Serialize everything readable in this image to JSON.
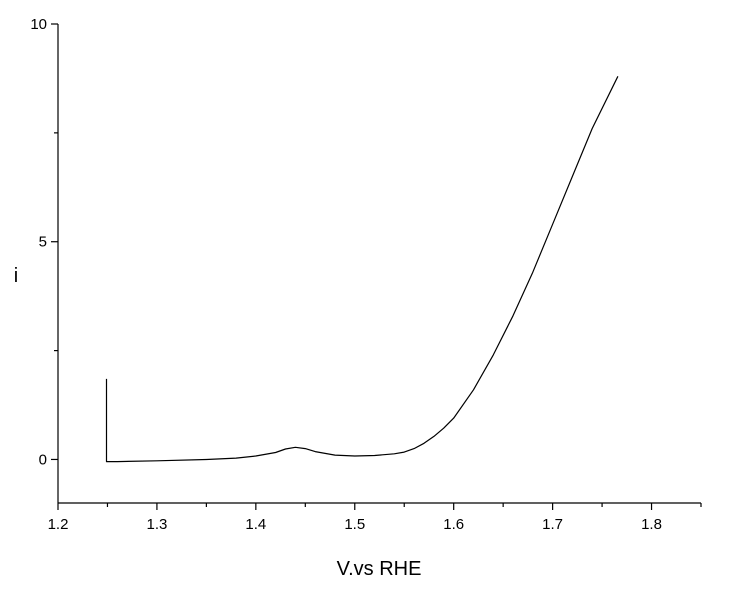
{
  "chart_data": {
    "type": "line",
    "title": "",
    "xlabel": "V.vs RHE",
    "ylabel": "i",
    "xlim": [
      1.2,
      1.85
    ],
    "ylim": [
      -1,
      10
    ],
    "x_ticks": [
      1.2,
      1.3,
      1.4,
      1.5,
      1.6,
      1.7,
      1.8
    ],
    "x_tick_labels": [
      "1.2",
      "1.3",
      "1.4",
      "1.5",
      "1.6",
      "1.7",
      "1.8"
    ],
    "y_ticks": [
      0,
      5,
      10
    ],
    "y_tick_labels": [
      "0",
      "5",
      "10"
    ],
    "grid": false,
    "legend": "none",
    "series": [
      {
        "color": "#000000",
        "x": [
          1.249,
          1.249,
          1.25,
          1.26,
          1.3,
          1.35,
          1.38,
          1.4,
          1.42,
          1.43,
          1.44,
          1.45,
          1.46,
          1.48,
          1.5,
          1.52,
          1.54,
          1.55,
          1.56,
          1.57,
          1.58,
          1.59,
          1.6,
          1.62,
          1.64,
          1.66,
          1.68,
          1.7,
          1.72,
          1.74,
          1.766
        ],
        "y": [
          1.85,
          -0.05,
          -0.05,
          -0.05,
          -0.03,
          0.0,
          0.03,
          0.08,
          0.16,
          0.24,
          0.28,
          0.25,
          0.18,
          0.1,
          0.08,
          0.09,
          0.13,
          0.17,
          0.25,
          0.37,
          0.53,
          0.72,
          0.95,
          1.6,
          2.4,
          3.3,
          4.3,
          5.4,
          6.5,
          7.6,
          8.8
        ]
      }
    ]
  }
}
